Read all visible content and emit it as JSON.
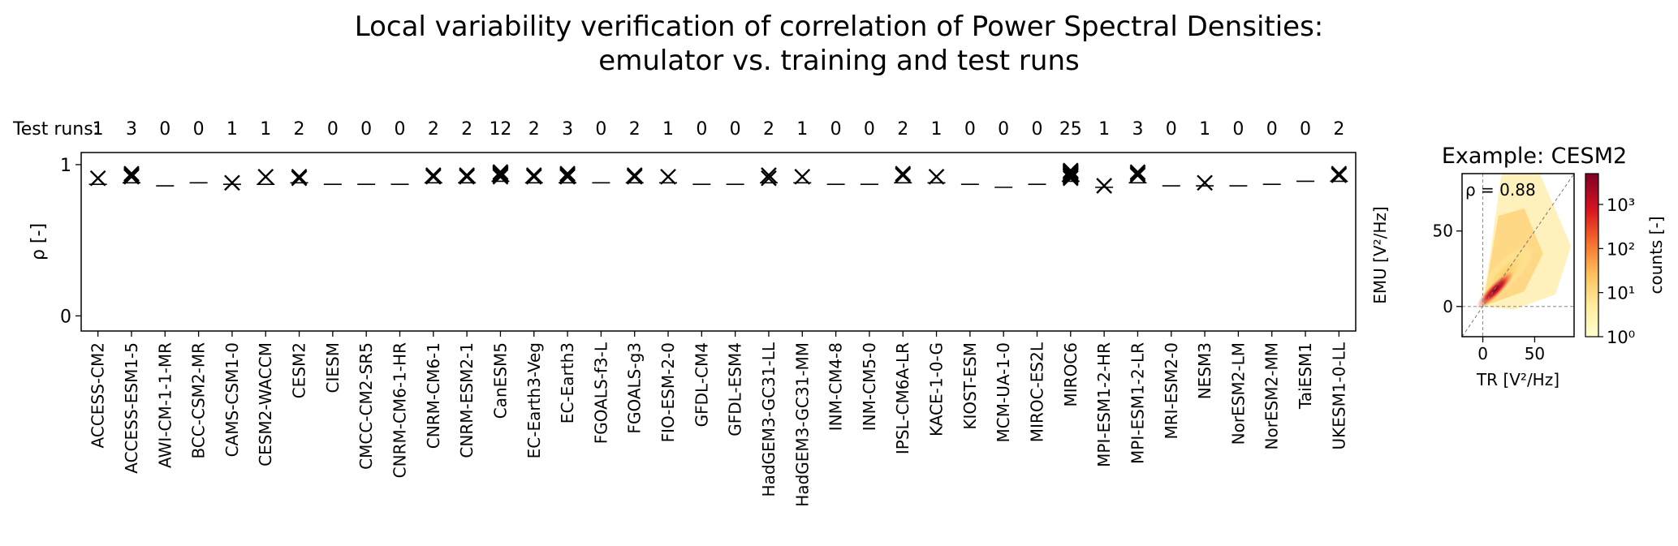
{
  "title": {
    "line1": "Local variability verification of correlation of Power Spectral Densities:",
    "line2": "emulator vs. training and test runs"
  },
  "chart_data": [
    {
      "type": "scatter",
      "marker": "x",
      "test_runs_label": "Test runs:",
      "ylabel": "ρ [-]",
      "ylim": [
        -0.1,
        1.08
      ],
      "yticks": [
        0,
        1
      ],
      "grid": false,
      "categories": [
        "ACCESS-CM2",
        "ACCESS-ESM1-5",
        "AWI-CM-1-1-MR",
        "BCC-CSM2-MR",
        "CAMS-CSM1-0",
        "CESM2-WACCM",
        "CESM2",
        "CIESM",
        "CMCC-CM2-SR5",
        "CNRM-CM6-1-HR",
        "CNRM-CM6-1",
        "CNRM-ESM2-1",
        "CanESM5",
        "EC-Earth3-Veg",
        "EC-Earth3",
        "FGOALS-f3-L",
        "FGOALS-g3",
        "FIO-ESM-2-0",
        "GFDL-CM4",
        "GFDL-ESM4",
        "HadGEM3-GC31-LL",
        "HadGEM3-GC31-MM",
        "INM-CM4-8",
        "INM-CM5-0",
        "IPSL-CM6A-LR",
        "KACE-1-0-G",
        "KIOST-ESM",
        "MCM-UA-1-0",
        "MIROC-ES2L",
        "MIROC6",
        "MPI-ESM1-2-HR",
        "MPI-ESM1-2-LR",
        "MRI-ESM2-0",
        "NESM3",
        "NorESM2-LM",
        "NorESM2-MM",
        "TaiESM1",
        "UKESM1-0-LL"
      ],
      "test_runs": [
        1,
        3,
        0,
        0,
        1,
        1,
        2,
        0,
        0,
        0,
        2,
        2,
        12,
        2,
        3,
        0,
        2,
        1,
        0,
        0,
        2,
        1,
        0,
        0,
        2,
        1,
        0,
        0,
        0,
        25,
        1,
        3,
        0,
        1,
        0,
        0,
        0,
        2
      ],
      "training_values": [
        0.87,
        0.88,
        0.86,
        0.88,
        0.87,
        0.87,
        0.88,
        0.87,
        0.87,
        0.87,
        0.88,
        0.88,
        0.89,
        0.88,
        0.88,
        0.88,
        0.88,
        0.88,
        0.87,
        0.87,
        0.88,
        0.88,
        0.87,
        0.87,
        0.88,
        0.88,
        0.87,
        0.85,
        0.87,
        0.89,
        0.85,
        0.88,
        0.86,
        0.86,
        0.86,
        0.87,
        0.89,
        0.89
      ],
      "test_values": [
        [
          0.91
        ],
        [
          0.92,
          0.93,
          0.94
        ],
        [],
        [],
        [
          0.88
        ],
        [
          0.92
        ],
        [
          0.91,
          0.92
        ],
        [],
        [],
        [],
        [
          0.92,
          0.93
        ],
        [
          0.92,
          0.93
        ],
        [
          0.92,
          0.93,
          0.93,
          0.94,
          0.94,
          0.94,
          0.95,
          0.95,
          0.93,
          0.94,
          0.93,
          0.94
        ],
        [
          0.92,
          0.93
        ],
        [
          0.92,
          0.93,
          0.94
        ],
        [],
        [
          0.92,
          0.93
        ],
        [
          0.92
        ],
        [],
        [],
        [
          0.91,
          0.93
        ],
        [
          0.92
        ],
        [],
        [],
        [
          0.93,
          0.94
        ],
        [
          0.92
        ],
        [],
        [],
        [],
        [
          0.91,
          0.92,
          0.93,
          0.94,
          0.95,
          0.96,
          0.93,
          0.94,
          0.95,
          0.92,
          0.93,
          0.94,
          0.95,
          0.93,
          0.94,
          0.95,
          0.96,
          0.92,
          0.93,
          0.94,
          0.95,
          0.93,
          0.94,
          0.95,
          0.94
        ],
        [
          0.86
        ],
        [
          0.93,
          0.94,
          0.95
        ],
        [],
        [
          0.88
        ],
        [],
        [],
        [],
        [
          0.93,
          0.94
        ]
      ]
    },
    {
      "type": "heatmap",
      "title": "Example: CESM2",
      "annotation": "ρ = 0.88",
      "xlabel": "TR [V²/Hz]",
      "ylabel": "EMU [V²/Hz]",
      "xlim": [
        -20,
        88
      ],
      "ylim": [
        -20,
        88
      ],
      "xticks": [
        0,
        50
      ],
      "yticks": [
        0,
        50
      ],
      "diagonal_line": true,
      "zero_lines": true,
      "colorbar": {
        "label": "counts [-]",
        "scale": "log",
        "range": [
          1,
          5000
        ],
        "ticks": [
          "10⁰",
          "10¹",
          "10²",
          "10³"
        ],
        "colors": [
          "#ffffcc",
          "#ffe58a",
          "#fdb44b",
          "#f66d2d",
          "#d7131f",
          "#800026"
        ]
      }
    }
  ]
}
